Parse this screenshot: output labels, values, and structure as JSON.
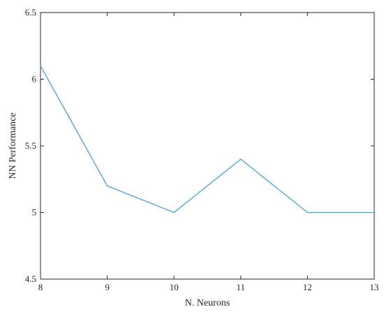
{
  "chart_data": {
    "type": "line",
    "title": "",
    "xlabel": "N. Neurons",
    "ylabel": "NN Performance",
    "x": [
      8,
      9,
      10,
      11,
      12,
      13
    ],
    "series": [
      {
        "values": [
          6.1,
          5.2,
          5.0,
          5.4,
          5.0,
          5.0
        ],
        "color": "#4a9fd8"
      }
    ],
    "xlim": [
      8,
      13
    ],
    "ylim": [
      4.5,
      6.5
    ],
    "xticks": [
      "8",
      "9",
      "10",
      "11",
      "12",
      "13"
    ],
    "yticks": [
      "4.5",
      "5",
      "5.5",
      "6",
      "6.5"
    ],
    "grid": false,
    "box": true,
    "axis_color": "#262626"
  }
}
